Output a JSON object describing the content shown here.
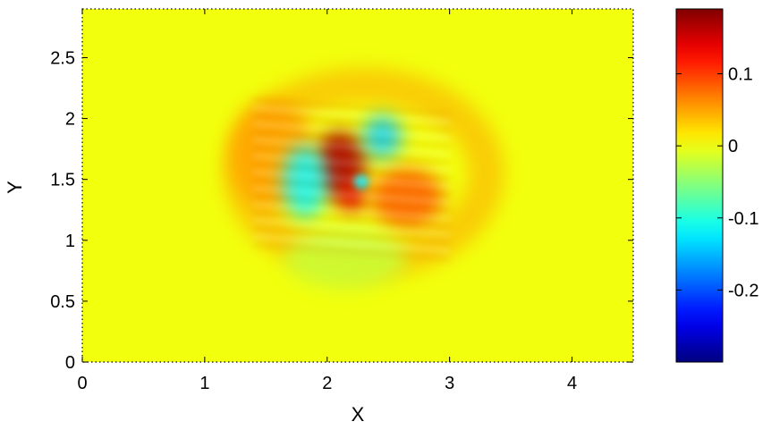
{
  "chart_data": {
    "type": "heatmap",
    "title": "",
    "xlabel": "X",
    "ylabel": "Y",
    "xlim": [
      0,
      4.5
    ],
    "ylim": [
      0,
      2.9
    ],
    "x_ticks": [
      0,
      1,
      2,
      3,
      4
    ],
    "x_tick_labels": [
      "0",
      "1",
      "2",
      "3",
      "4"
    ],
    "y_ticks": [
      0,
      0.5,
      1,
      1.5,
      2,
      2.5
    ],
    "y_tick_labels": [
      "0",
      "0.5",
      "1",
      "1.5",
      "2",
      "2.5"
    ],
    "colormap": "jet",
    "background_value": 0,
    "colorbar": {
      "range": [
        -0.3,
        0.19
      ],
      "ticks": [
        0.1,
        0,
        -0.1,
        -0.2
      ],
      "tick_labels": [
        "0.1",
        "0",
        "-0.1",
        "-0.2"
      ]
    },
    "grid": false,
    "features": [
      {
        "kind": "ring",
        "cx": 2.3,
        "cy": 1.55,
        "rx": 1.0,
        "ry": 0.72,
        "value": 0.05
      },
      {
        "kind": "peak",
        "cx": 2.1,
        "cy": 1.62,
        "rx": 0.22,
        "ry": 0.28,
        "value": 0.17
      },
      {
        "kind": "peak",
        "cx": 2.2,
        "cy": 1.35,
        "rx": 0.12,
        "ry": 0.12,
        "value": 0.14
      },
      {
        "kind": "peak",
        "cx": 2.65,
        "cy": 1.35,
        "rx": 0.3,
        "ry": 0.25,
        "value": 0.08
      },
      {
        "kind": "peak",
        "cx": 1.55,
        "cy": 1.7,
        "rx": 0.35,
        "ry": 0.45,
        "value": 0.05
      },
      {
        "kind": "trough",
        "cx": 1.82,
        "cy": 1.48,
        "rx": 0.18,
        "ry": 0.3,
        "value": -0.12
      },
      {
        "kind": "trough",
        "cx": 2.45,
        "cy": 1.85,
        "rx": 0.16,
        "ry": 0.18,
        "value": -0.14
      },
      {
        "kind": "trough",
        "cx": 2.28,
        "cy": 1.48,
        "rx": 0.06,
        "ry": 0.06,
        "value": -0.12
      },
      {
        "kind": "trough",
        "cx": 2.15,
        "cy": 0.85,
        "rx": 0.5,
        "ry": 0.25,
        "value": -0.02
      }
    ]
  }
}
